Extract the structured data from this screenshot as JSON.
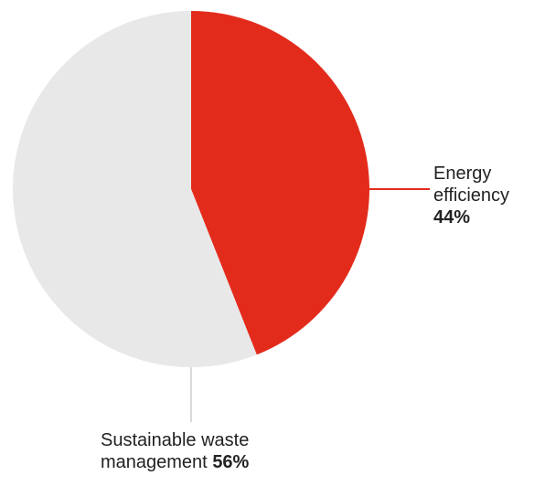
{
  "chart_data": {
    "type": "pie",
    "slices": [
      {
        "label_line1": "Energy",
        "label_line2": "efficiency",
        "value": 44,
        "value_text": "44%",
        "color": "#e32b1c"
      },
      {
        "label_line1": "Sustainable waste",
        "label_line2": "management",
        "value": 56,
        "value_text": "56%",
        "color": "#e8e8e8"
      }
    ],
    "start_angle": "12 o'clock",
    "direction": "clockwise",
    "leader_line_color_energy": "#e32b1c",
    "leader_line_color_waste": "#d9d9d9",
    "legend": "none"
  }
}
